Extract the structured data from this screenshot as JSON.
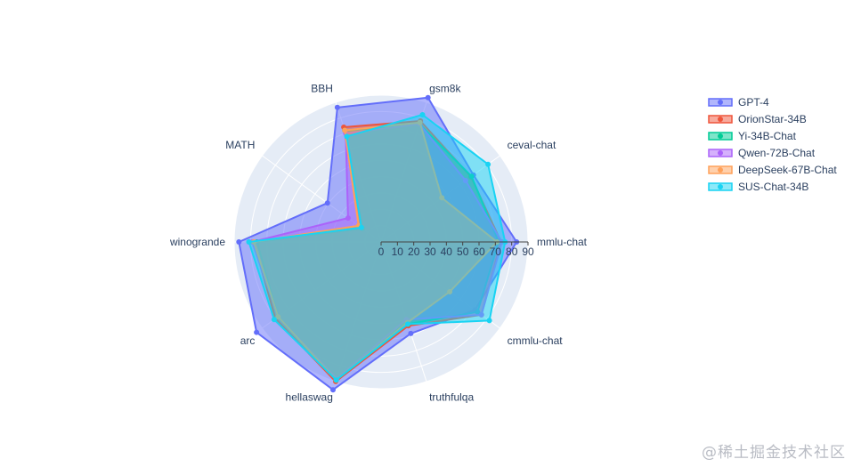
{
  "chart_data": {
    "type": "radar",
    "title": "",
    "categories": [
      "mmlu-chat",
      "ceval-chat",
      "gsm8k",
      "BBH",
      "MATH",
      "winogrande",
      "arc",
      "hellaswag",
      "truthfulqa",
      "cmmlu-chat"
    ],
    "radial_range": [
      0,
      90
    ],
    "radial_ticks": [
      "0",
      "10",
      "20",
      "30",
      "40",
      "50",
      "60",
      "70",
      "80",
      "90"
    ],
    "grid": true,
    "legend_position": "top-right",
    "series": [
      {
        "name": "GPT-4",
        "color": "#636efa",
        "values": [
          83.0,
          69.9,
          93.0,
          86.7,
          40.6,
          87.1,
          94.3,
          95.3,
          59.0,
          71.0
        ]
      },
      {
        "name": "OrionStar-34B",
        "color": "#ef553b",
        "values": [
          73.5,
          68.0,
          78.0,
          74.0,
          16.0,
          78.0,
          80.0,
          90.0,
          54.0,
          76.0
        ]
      },
      {
        "name": "Yi-34B-Chat",
        "color": "#00cc96",
        "values": [
          72.0,
          68.5,
          76.0,
          72.0,
          14.0,
          76.0,
          78.0,
          89.0,
          53.0,
          73.0
        ]
      },
      {
        "name": "Qwen-72B-Chat",
        "color": "#ab63fa",
        "values": [
          74.0,
          64.0,
          76.0,
          70.0,
          25.0,
          79.0,
          78.0,
          88.0,
          50.0,
          76.0
        ]
      },
      {
        "name": "DeepSeek-67B-Chat",
        "color": "#ffa15a",
        "values": [
          71.0,
          46.0,
          77.0,
          72.0,
          17.0,
          78.0,
          78.0,
          89.0,
          52.0,
          52.0
        ]
      },
      {
        "name": "SUS-Chat-34B",
        "color": "#19d3f3",
        "values": [
          76.0,
          81.0,
          82.0,
          68.0,
          15.0,
          81.0,
          81.0,
          89.0,
          53.0,
          82.0
        ]
      }
    ]
  },
  "watermark": "@稀土掘金技术社区"
}
